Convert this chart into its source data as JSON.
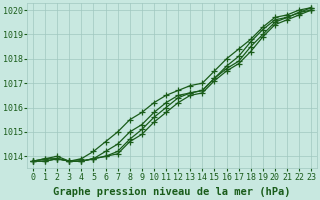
{
  "title": "Graphe pression niveau de la mer (hPa)",
  "xlabel_hours": [
    0,
    1,
    2,
    3,
    4,
    5,
    6,
    7,
    8,
    9,
    10,
    11,
    12,
    13,
    14,
    15,
    16,
    17,
    18,
    19,
    20,
    21,
    22,
    23
  ],
  "ylim": [
    1013.5,
    1020.3
  ],
  "yticks": [
    1014,
    1015,
    1016,
    1017,
    1018,
    1019,
    1020
  ],
  "bg_color": "#c8e8e0",
  "grid_color": "#a0c8c0",
  "line_color": "#1a5c1a",
  "series": [
    [
      1013.8,
      1013.8,
      1013.9,
      1013.8,
      1013.9,
      1014.2,
      1014.6,
      1015.0,
      1015.5,
      1015.8,
      1016.2,
      1016.5,
      1016.7,
      1016.9,
      1017.0,
      1017.5,
      1018.0,
      1018.4,
      1018.8,
      1019.3,
      1019.7,
      1019.8,
      1020.0,
      1020.1
    ],
    [
      1013.8,
      1013.8,
      1013.9,
      1013.8,
      1013.8,
      1013.9,
      1014.2,
      1014.5,
      1015.0,
      1015.3,
      1015.8,
      1016.2,
      1016.5,
      1016.6,
      1016.7,
      1017.2,
      1017.7,
      1018.1,
      1018.7,
      1019.2,
      1019.6,
      1019.7,
      1019.9,
      1020.0
    ],
    [
      1013.8,
      1013.9,
      1013.9,
      1013.8,
      1013.8,
      1013.9,
      1014.0,
      1014.2,
      1014.7,
      1015.1,
      1015.6,
      1016.0,
      1016.4,
      1016.6,
      1016.7,
      1017.2,
      1017.6,
      1017.9,
      1018.5,
      1019.0,
      1019.5,
      1019.7,
      1019.9,
      1020.1
    ],
    [
      1013.8,
      1013.9,
      1014.0,
      1013.8,
      1013.8,
      1013.9,
      1014.0,
      1014.1,
      1014.6,
      1014.9,
      1015.4,
      1015.8,
      1016.2,
      1016.5,
      1016.6,
      1017.1,
      1017.5,
      1017.8,
      1018.3,
      1018.9,
      1019.4,
      1019.6,
      1019.8,
      1020.0
    ]
  ],
  "marker": "+",
  "marker_size": 4,
  "linewidth": 0.9,
  "title_fontsize": 7.5,
  "tick_fontsize": 6.0
}
